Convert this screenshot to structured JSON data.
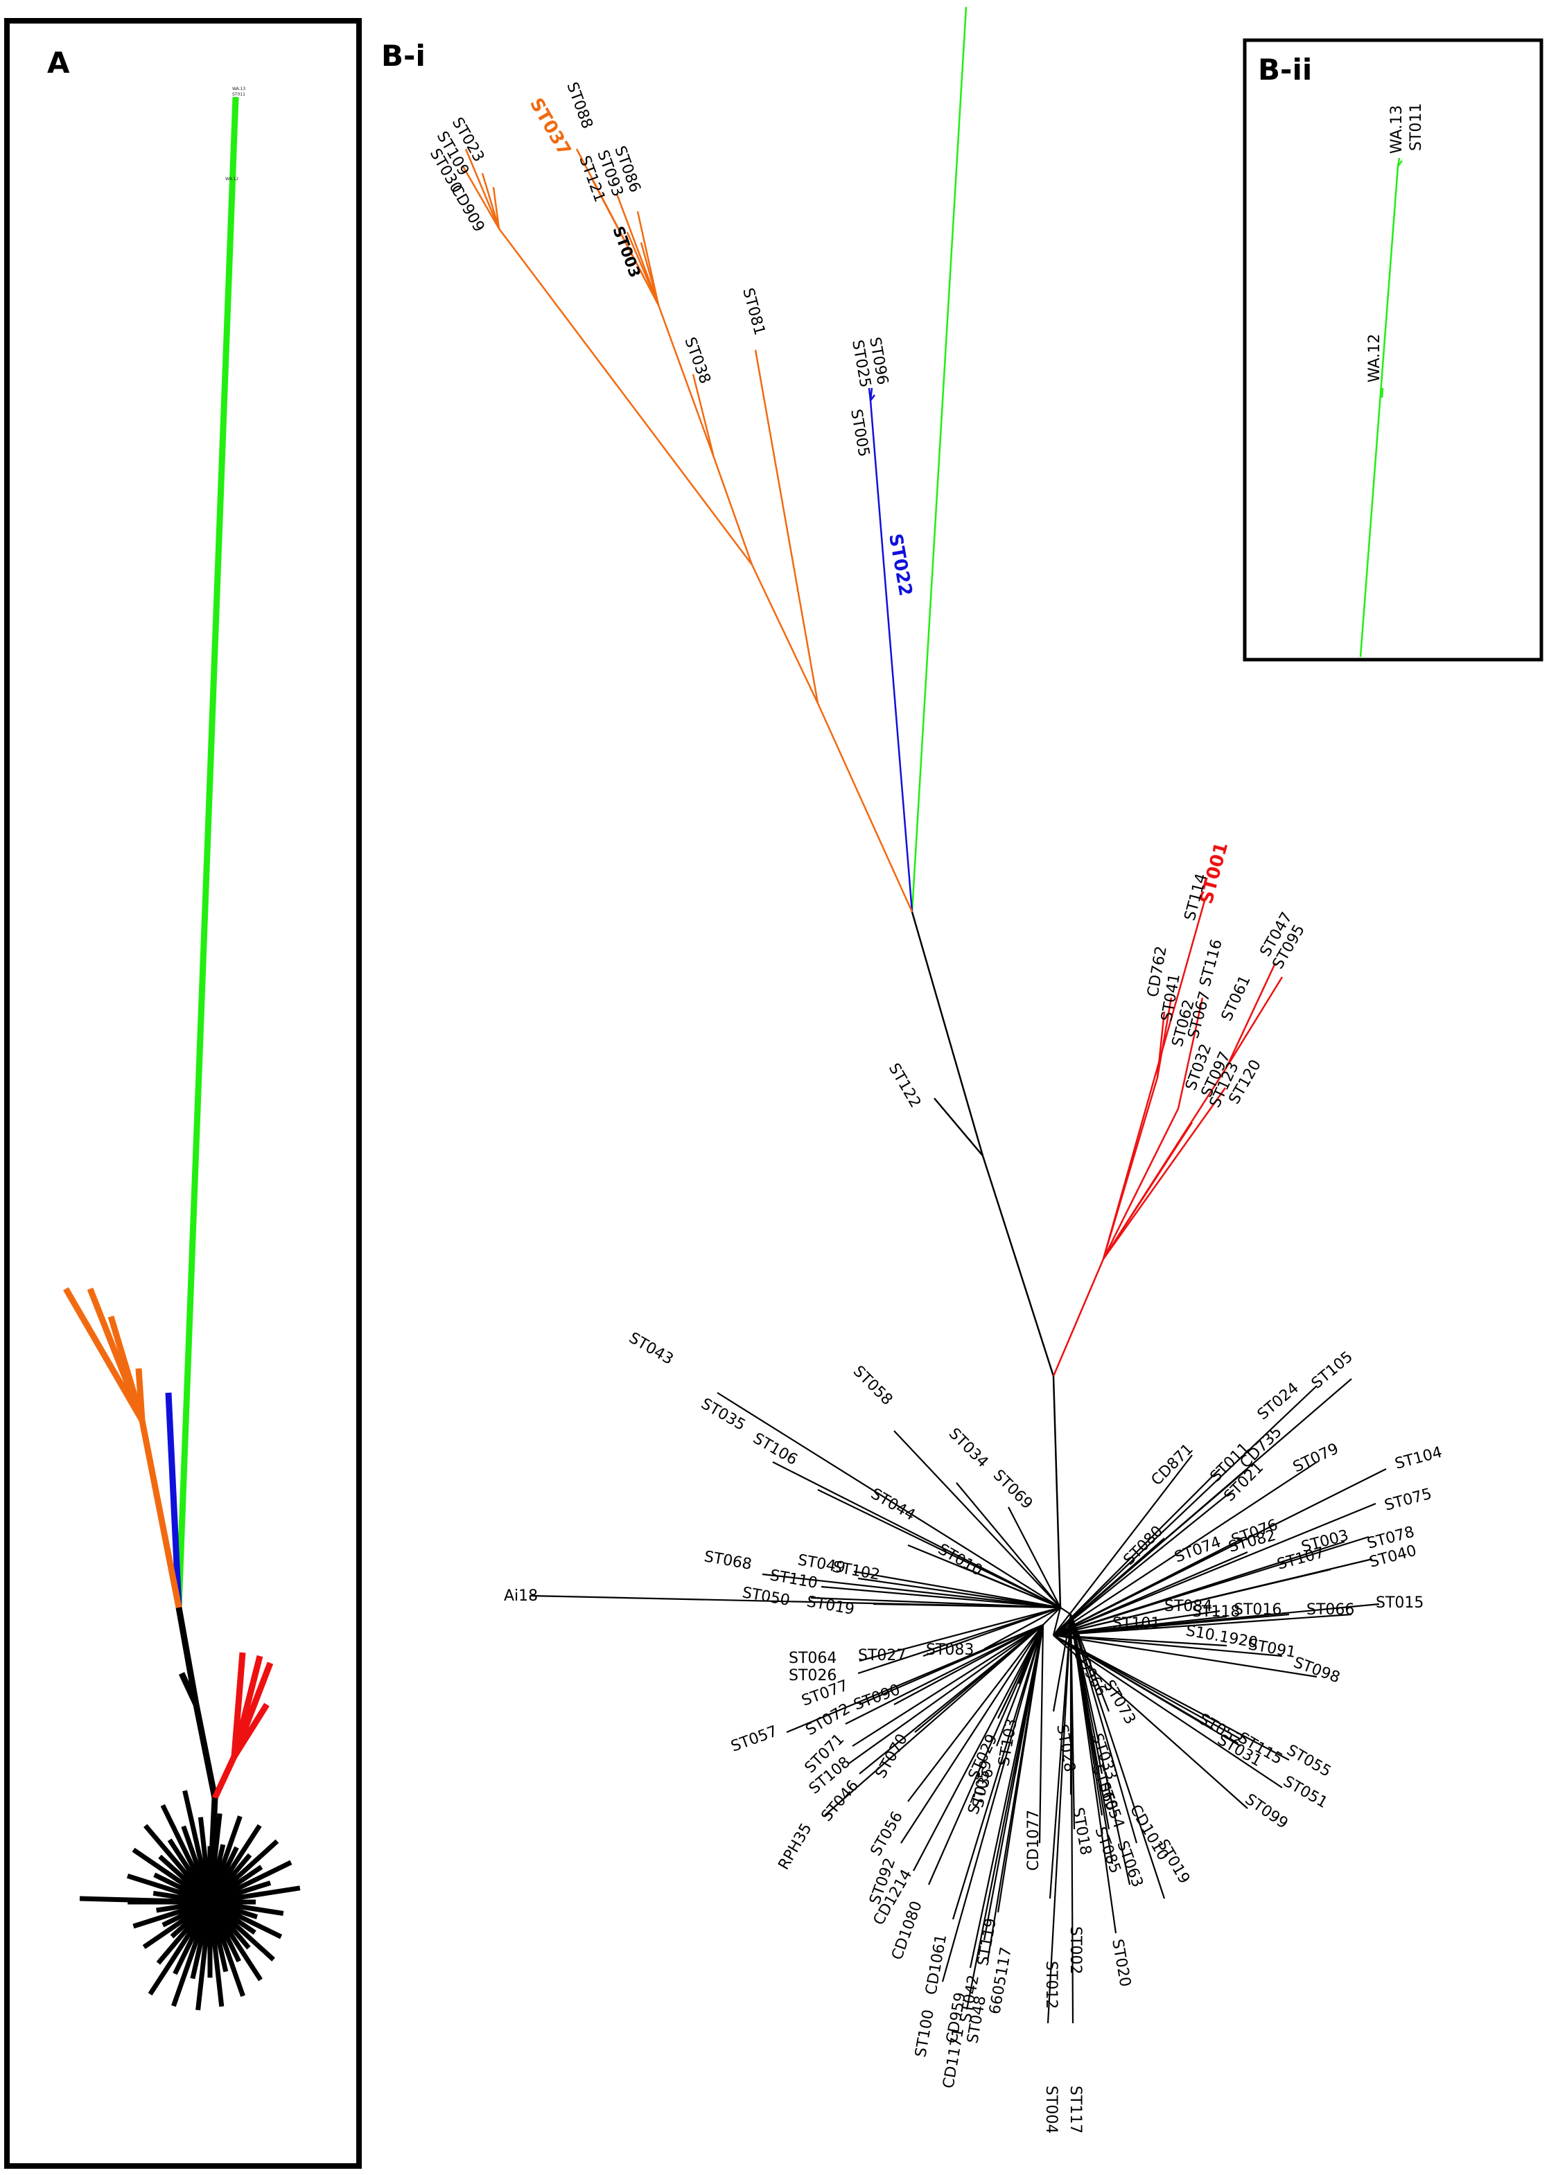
{
  "panels": {
    "A": {
      "label": "A"
    },
    "Bi": {
      "label": "B-i"
    },
    "Bii": {
      "label": "B-ii",
      "tips": [
        "WA.13",
        "ST011",
        "WA.12"
      ]
    }
  },
  "colors": {
    "green": "#22ee11",
    "orange": "#f26a10",
    "blue": "#1010dd",
    "red": "#ee1111",
    "black": "#000000"
  },
  "tree": {
    "clades": {
      "green": {
        "tips": []
      },
      "orange": {
        "tips": [
          "ST023",
          "ST109",
          "ST030",
          "CD909",
          "ST037",
          "ST088",
          "ST093",
          "ST086",
          "ST121",
          "ST003",
          "ST038",
          "ST081"
        ]
      },
      "blue": {
        "tips": [
          "ST096",
          "ST025",
          "ST005",
          "ST022"
        ]
      },
      "red": {
        "tips": [
          "ST001",
          "ST114",
          "CD762",
          "ST041",
          "ST116",
          "ST062",
          "ST067",
          "ST047",
          "ST095",
          "ST061",
          "ST032",
          "ST097",
          "ST123",
          "ST120"
        ]
      },
      "black": {
        "tips": [
          "ST122",
          "ST043",
          "ST035",
          "ST106",
          "ST058",
          "ST034",
          "ST069",
          "ST044",
          "ST010",
          "ST068",
          "ST049",
          "ST102",
          "ST110",
          "ST050",
          "ST019",
          "Ai18",
          "ST064",
          "ST027",
          "ST083",
          "ST026",
          "ST077",
          "ST090",
          "ST057",
          "ST072",
          "ST108",
          "ST071",
          "ST046",
          "RPH35",
          "ST070",
          "ST056",
          "CD1214",
          "ST092",
          "ST036",
          "CD1080",
          "ST029",
          "ST103",
          "ST059",
          "CD1061",
          "ST100",
          "CD959",
          "CD1171",
          "ST042",
          "ST048",
          "ST119",
          "6605117",
          "CD1077",
          "ST028",
          "ST018",
          "ST012",
          "ST002",
          "ST004",
          "ST117",
          "CD966",
          "ST073",
          "ST033",
          "ST065",
          "ST054",
          "ST085",
          "CD1010",
          "ST063",
          "ST019",
          "ST020",
          "ST024",
          "ST105",
          "CD871",
          "ST011",
          "CD735",
          "ST021",
          "ST079",
          "ST104",
          "ST075",
          "ST080",
          "ST074",
          "ST076",
          "ST082",
          "ST003",
          "ST078",
          "ST107",
          "ST040",
          "ST084",
          "ST118",
          "ST101",
          "ST016",
          "ST066",
          "ST015",
          "S10.1920",
          "ST091",
          "ST098",
          "ST052",
          "ST031",
          "ST115",
          "ST055",
          "ST051",
          "ST099"
        ]
      }
    }
  }
}
